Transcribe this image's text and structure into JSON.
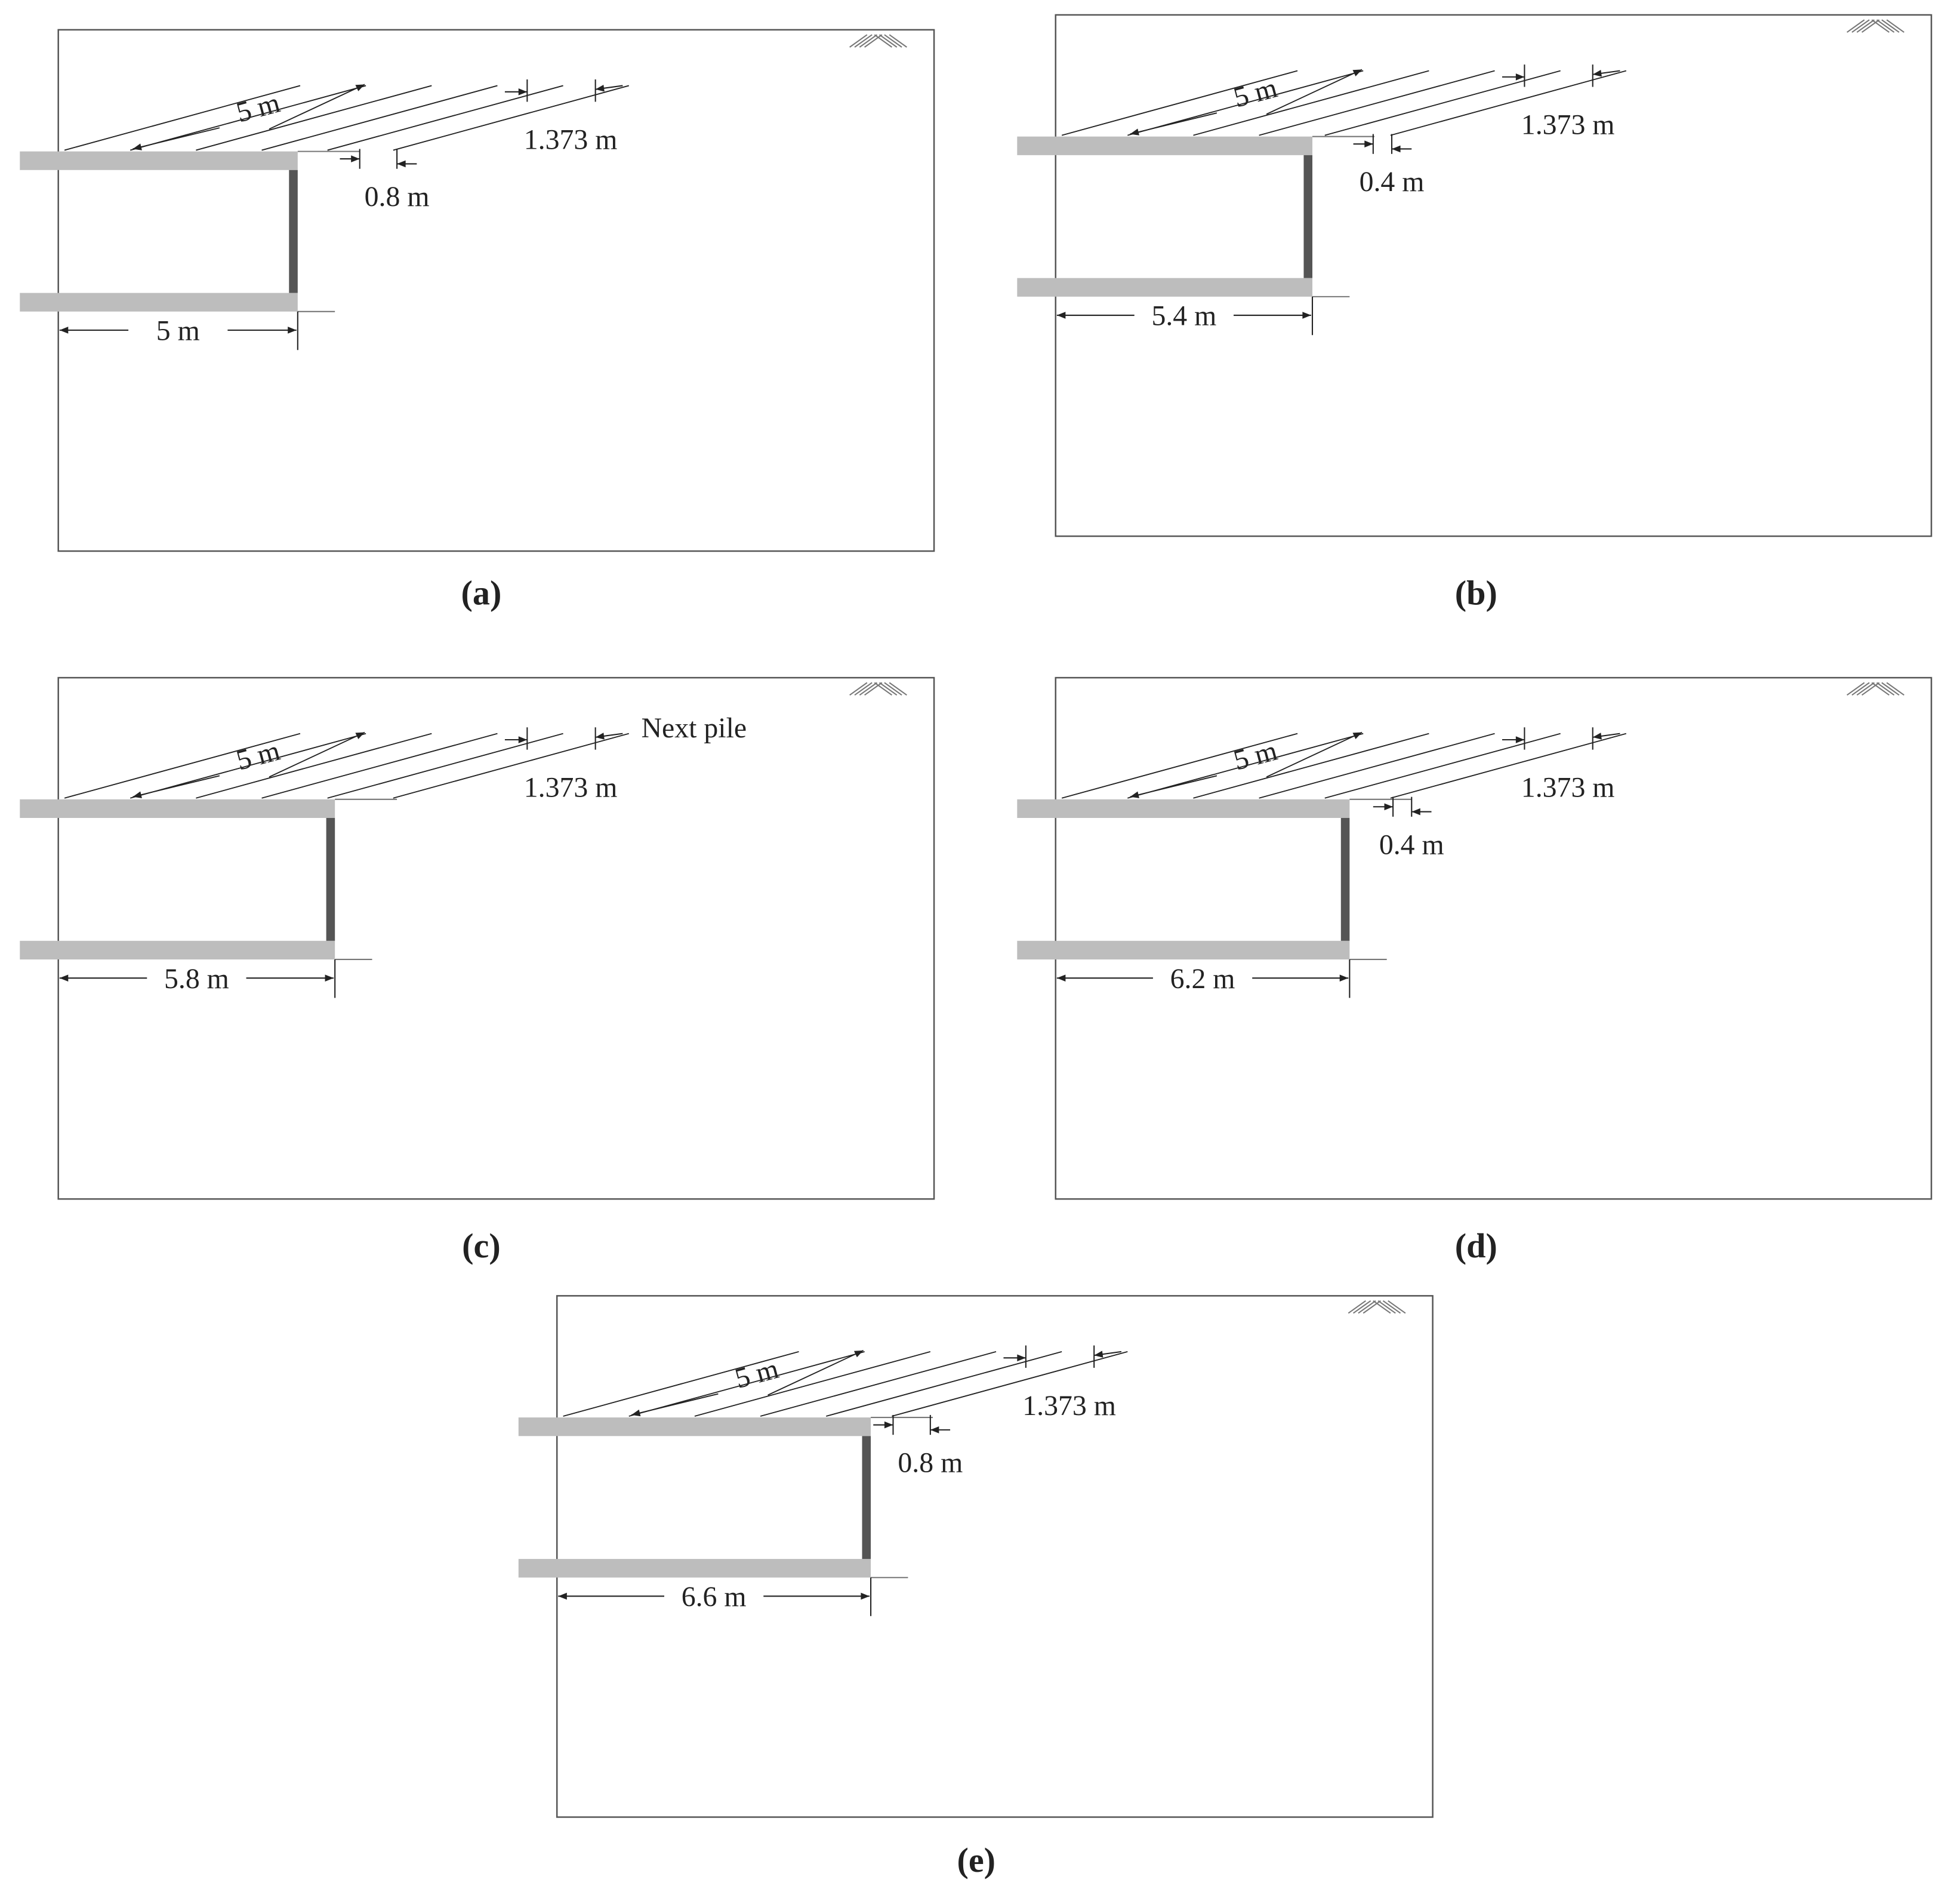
{
  "panels": [
    {
      "caption": "(a)",
      "slope_length": "5 m",
      "spacing": "1.373 m",
      "gap": "0.8 m",
      "length": "5 m"
    },
    {
      "caption": "(b)",
      "slope_length": "5 m",
      "spacing": "1.373 m",
      "gap": "0.4 m",
      "length": "5.4 m"
    },
    {
      "caption": "(c)",
      "slope_length": "5 m",
      "spacing": "1.373 m",
      "note": "Next pile",
      "length": "5.8 m"
    },
    {
      "caption": "(d)",
      "slope_length": "5 m",
      "spacing": "1.373 m",
      "gap": "0.4 m",
      "length": "6.2 m"
    },
    {
      "caption": "(e)",
      "slope_length": "5 m",
      "spacing": "1.373 m",
      "gap": "0.8 m",
      "length": "6.6 m"
    }
  ]
}
